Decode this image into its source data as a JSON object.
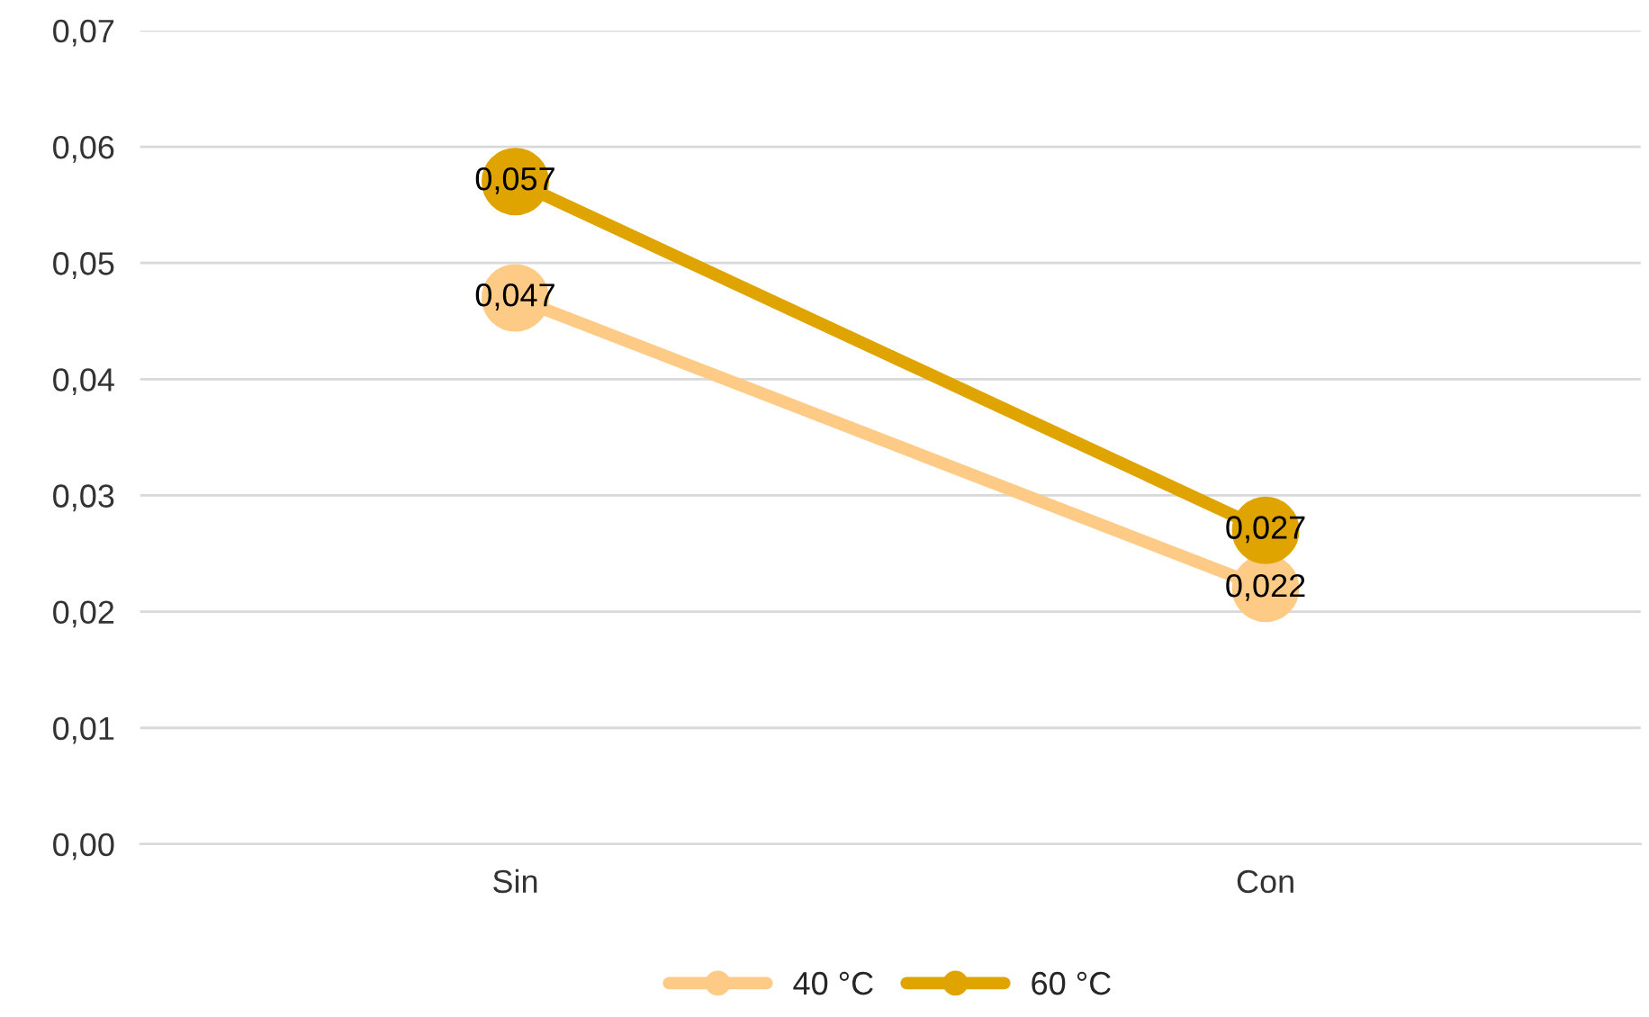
{
  "chart_data": {
    "type": "line",
    "categories": [
      "Sin",
      "Con"
    ],
    "series": [
      {
        "name": "40 °C",
        "color": "#fdcb85",
        "values": [
          0.047,
          0.022
        ],
        "value_labels": [
          "0,047",
          "0,022"
        ]
      },
      {
        "name": "60 °C",
        "color": "#e0a400",
        "values": [
          0.057,
          0.027
        ],
        "value_labels": [
          "0,057",
          "0,027"
        ]
      }
    ],
    "ylim": [
      0,
      0.07
    ],
    "yticks": [
      {
        "value": 0,
        "label": "0,00"
      },
      {
        "value": 0.01,
        "label": "0,01"
      },
      {
        "value": 0.02,
        "label": "0,02"
      },
      {
        "value": 0.03,
        "label": "0,03"
      },
      {
        "value": 0.04,
        "label": "0,04"
      },
      {
        "value": 0.05,
        "label": "0,05"
      },
      {
        "value": 0.06,
        "label": "0,06"
      },
      {
        "value": 0.07,
        "label": "0,07"
      }
    ],
    "grid": "y",
    "legend": "bottom",
    "marker": "circle",
    "line_style": "solid"
  }
}
